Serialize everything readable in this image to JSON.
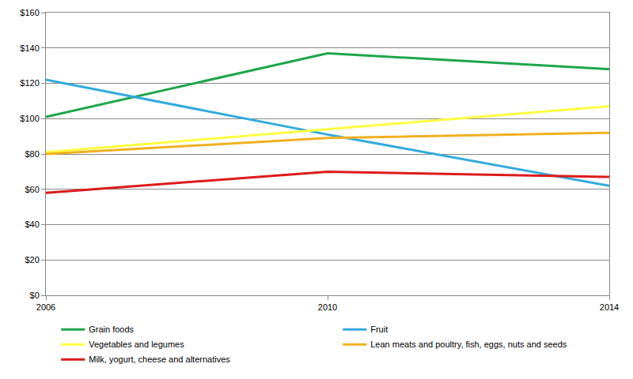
{
  "chart_data": {
    "type": "line",
    "categories": [
      "2006",
      "2010",
      "2014"
    ],
    "series": [
      {
        "name": "Grain foods",
        "color": "#1ea54c",
        "values": [
          101,
          137,
          128
        ]
      },
      {
        "name": "Fruit",
        "color": "#33aadd",
        "values": [
          122,
          91,
          62
        ]
      },
      {
        "name": "Vegetables and legumes",
        "color": "#ffff40",
        "values": [
          81,
          94,
          107
        ]
      },
      {
        "name": "Lean meats and poultry, fish, eggs, nuts and seeds",
        "color": "#f0b020",
        "values": [
          80,
          89,
          92
        ]
      },
      {
        "name": "Milk, yogurt, cheese and alternatives",
        "color": "#dd1a1a",
        "values": [
          58,
          70,
          67
        ]
      }
    ],
    "ylim": [
      0,
      160
    ],
    "yticks": [
      {
        "value": 0,
        "label": "$0"
      },
      {
        "value": 20,
        "label": "$20"
      },
      {
        "value": 40,
        "label": "$40"
      },
      {
        "value": 60,
        "label": "$60"
      },
      {
        "value": 80,
        "label": "$80"
      },
      {
        "value": 100,
        "label": "$100"
      },
      {
        "value": 120,
        "label": "$120"
      },
      {
        "value": 140,
        "label": "$140"
      },
      {
        "value": 160,
        "label": "$160"
      }
    ],
    "grid": true,
    "legend": "bottom"
  }
}
